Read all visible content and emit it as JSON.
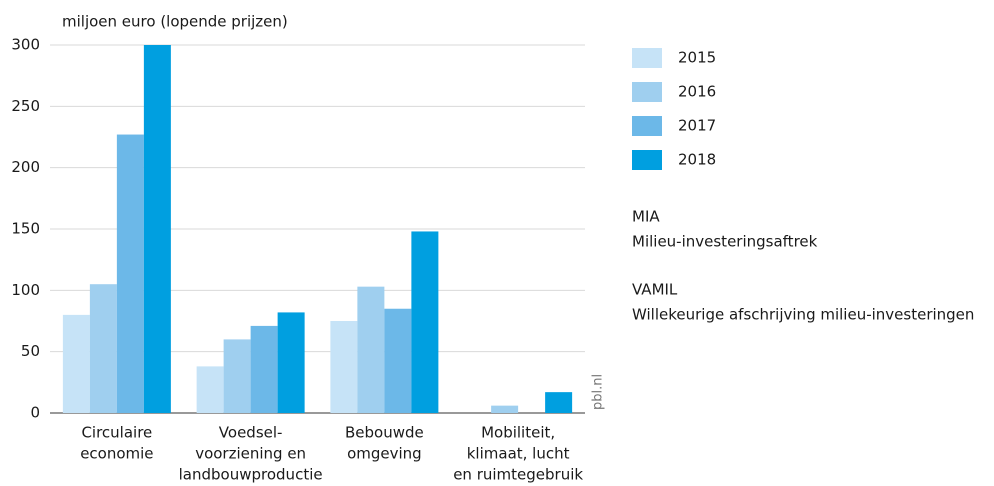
{
  "chart_data": {
    "type": "bar",
    "y_label": "miljoen euro (lopende prijzen)",
    "categories": [
      [
        "Circulaire",
        "economie"
      ],
      [
        "Voedsel-",
        "voorziening en",
        "landbouwproductie"
      ],
      [
        "Bebouwde",
        "omgeving"
      ],
      [
        "Mobiliteit,",
        "klimaat, lucht",
        "en ruimtegebruik"
      ]
    ],
    "series": [
      {
        "name": "2015",
        "color": "#c6e3f7",
        "values": [
          80,
          38,
          75,
          null
        ]
      },
      {
        "name": "2016",
        "color": "#9fcfef",
        "values": [
          105,
          60,
          103,
          6
        ]
      },
      {
        "name": "2017",
        "color": "#6cb8e8",
        "values": [
          227,
          71,
          85,
          null
        ]
      },
      {
        "name": "2018",
        "color": "#009fe0",
        "values": [
          300,
          82,
          148,
          17
        ]
      }
    ],
    "ylim": [
      0,
      300
    ],
    "yticks": [
      0,
      50,
      100,
      150,
      200,
      250,
      300
    ],
    "grid": true,
    "notes": [
      {
        "title": "MIA",
        "text": "Milieu-investeringsaftrek"
      },
      {
        "title": "VAMIL",
        "text": "Willekeurige afschrijving milieu-investeringen"
      }
    ],
    "source": "pbl.nl"
  }
}
